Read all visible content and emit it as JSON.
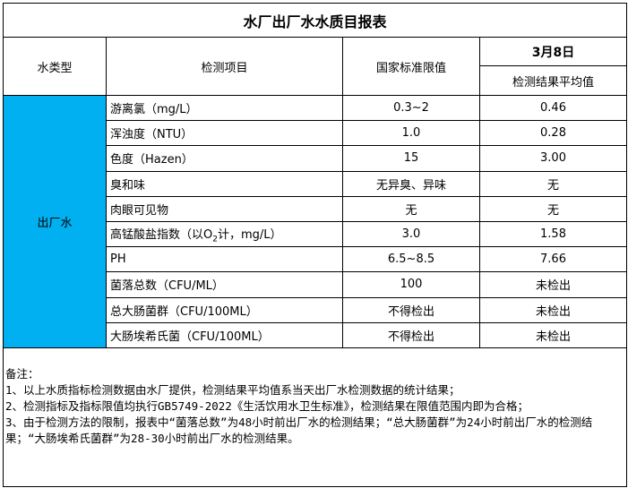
{
  "title": "水厂出厂水水质目报表",
  "header": {
    "water_type": "水类型",
    "item": "检测项目",
    "standard": "国家标准限值",
    "date": "3月8日",
    "result": "检测结果平均值"
  },
  "water_type_value": "出厂水",
  "rows": [
    {
      "item": "游离氯（mg/L）",
      "standard": "0.3~2",
      "result": "0.46"
    },
    {
      "item": "浑浊度（NTU）",
      "standard": "1.0",
      "result": "0.28"
    },
    {
      "item": "色度（Hazen）",
      "standard": "15",
      "result": "3.00"
    },
    {
      "item": "臭和味",
      "standard": "无异臭、异味",
      "result": "无"
    },
    {
      "item": "肉眼可见物",
      "standard": "无",
      "result": "无"
    },
    {
      "item_prefix": "高锰酸盐指数（以O",
      "item_sub": "2",
      "item_suffix": "计，mg/L）",
      "standard": "3.0",
      "result": "1.58"
    },
    {
      "item": "PH",
      "standard": "6.5~8.5",
      "result": "7.66"
    },
    {
      "item": "菌落总数（CFU/ML）",
      "standard": "100",
      "result": "未检出"
    },
    {
      "item": "总大肠菌群（CFU/100ML）",
      "standard": "不得检出",
      "result": "未检出"
    },
    {
      "item": "大肠埃希氏菌（CFU/100ML）",
      "standard": "不得检出",
      "result": "未检出"
    }
  ],
  "notes": {
    "label": "备注：",
    "lines": [
      "1、以上水质指标检测数据由水厂提供，检测结果平均值系当天出厂水检测数据的统计结果；",
      "2、检测指标及指标限值均执行GB5749-2022《生活饮用水卫生标准》，检测结果在限值范围内即为合格；",
      "3、由于检测方法的限制，报表中“菌落总数”为48小时前出厂水的检测结果；“总大肠菌群”为24小时前出厂水的检测结果；“大肠埃希氏菌群”为28-30小时前出厂水的检测结果。"
    ]
  },
  "colors": {
    "water_type_bg": "#00B0F0"
  }
}
